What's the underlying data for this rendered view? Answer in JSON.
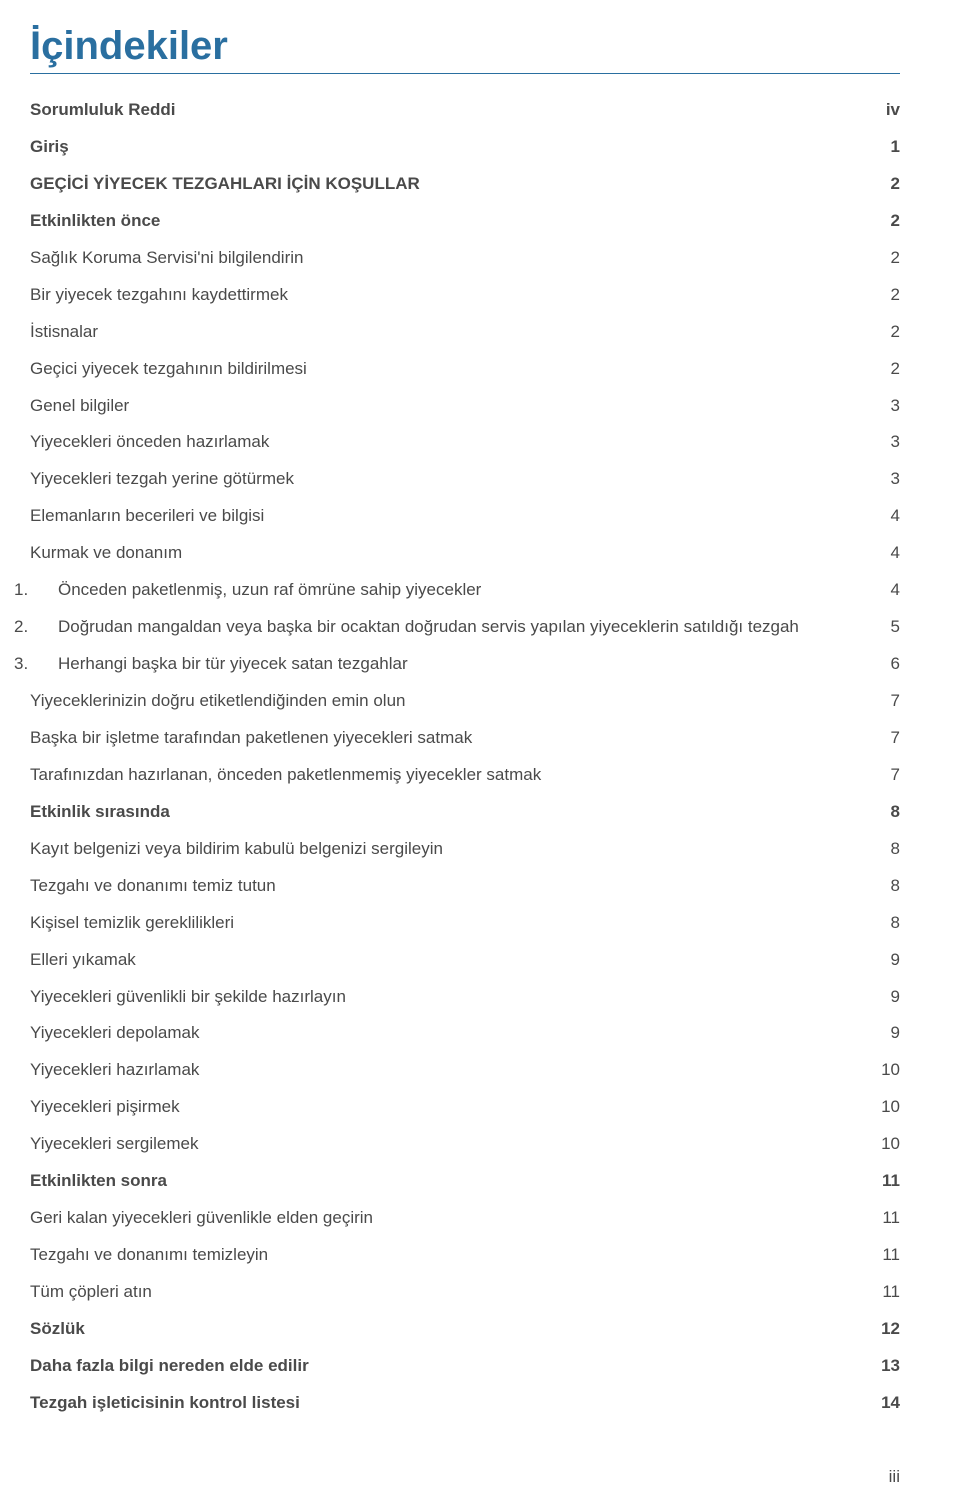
{
  "heading": "İçindekiler",
  "page_number": "iii",
  "colors": {
    "heading": "#2a6fa0",
    "text": "#4a4a4a",
    "rule": "#2a6fa0",
    "background": "#ffffff"
  },
  "typography": {
    "heading_fontsize": 40,
    "body_fontsize": 17,
    "heading_weight": 700,
    "bold_weight": 700,
    "normal_weight": 400
  },
  "toc": [
    {
      "label": "Sorumluluk Reddi",
      "page": "iv",
      "bold": true
    },
    {
      "label": "Giriş",
      "page": "1",
      "bold": true
    },
    {
      "label": "GEÇİCİ YİYECEK TEZGAHLARI İÇİN KOŞULLAR",
      "page": "2",
      "bold": true
    },
    {
      "label": "Etkinlikten önce",
      "page": "2",
      "bold": true
    },
    {
      "label": "Sağlık Koruma Servisi'ni bilgilendirin",
      "page": "2",
      "bold": false
    },
    {
      "label": "Bir yiyecek tezgahını kaydettirmek",
      "page": "2",
      "bold": false
    },
    {
      "label": "İstisnalar",
      "page": "2",
      "bold": false
    },
    {
      "label": "Geçici yiyecek tezgahının bildirilmesi",
      "page": "2",
      "bold": false
    },
    {
      "label": "Genel bilgiler",
      "page": "3",
      "bold": false
    },
    {
      "label": "Yiyecekleri önceden hazırlamak",
      "page": "3",
      "bold": false
    },
    {
      "label": "Yiyecekleri tezgah yerine götürmek",
      "page": "3",
      "bold": false
    },
    {
      "label": "Elemanların becerileri ve bilgisi",
      "page": "4",
      "bold": false
    },
    {
      "label": "Kurmak ve donanım",
      "page": "4",
      "bold": false
    },
    {
      "label": "Önceden paketlenmiş, uzun raf ömrüne sahip yiyecekler",
      "page": "4",
      "bold": false,
      "indent": 1,
      "num": "1."
    },
    {
      "label": "Doğrudan mangaldan veya başka bir ocaktan doğrudan servis yapılan yiyeceklerin satıldığı tezgah",
      "page": "5",
      "bold": false,
      "indent": 1,
      "num": "2."
    },
    {
      "label": "Herhangi başka bir tür yiyecek satan tezgahlar",
      "page": "6",
      "bold": false,
      "indent": 1,
      "num": "3."
    },
    {
      "label": "Yiyeceklerinizin doğru etiketlendiğinden emin olun",
      "page": "7",
      "bold": false
    },
    {
      "label": "Başka bir işletme tarafından paketlenen yiyecekleri satmak",
      "page": "7",
      "bold": false
    },
    {
      "label": "Tarafınızdan hazırlanan, önceden paketlenmemiş yiyecekler satmak",
      "page": "7",
      "bold": false
    },
    {
      "label": "Etkinlik sırasında",
      "page": "8",
      "bold": true
    },
    {
      "label": "Kayıt belgenizi veya bildirim kabulü belgenizi sergileyin",
      "page": "8",
      "bold": false
    },
    {
      "label": "Tezgahı ve donanımı temiz tutun",
      "page": "8",
      "bold": false
    },
    {
      "label": "Kişisel temizlik gereklilikleri",
      "page": "8",
      "bold": false
    },
    {
      "label": "Elleri yıkamak",
      "page": "9",
      "bold": false
    },
    {
      "label": "Yiyecekleri güvenlikli bir şekilde hazırlayın",
      "page": "9",
      "bold": false
    },
    {
      "label": "Yiyecekleri depolamak",
      "page": "9",
      "bold": false
    },
    {
      "label": "Yiyecekleri hazırlamak",
      "page": "10",
      "bold": false
    },
    {
      "label": "Yiyecekleri pişirmek",
      "page": "10",
      "bold": false
    },
    {
      "label": "Yiyecekleri sergilemek",
      "page": "10",
      "bold": false
    },
    {
      "label": "Etkinlikten sonra",
      "page": "11",
      "bold": true
    },
    {
      "label": "Geri kalan yiyecekleri güvenlikle elden geçirin",
      "page": "11",
      "bold": false
    },
    {
      "label": "Tezgahı ve donanımı temizleyin",
      "page": "11",
      "bold": false
    },
    {
      "label": "Tüm çöpleri atın",
      "page": "11",
      "bold": false
    },
    {
      "label": "Sözlük",
      "page": "12",
      "bold": true
    },
    {
      "label": "Daha fazla bilgi nereden elde edilir",
      "page": "13",
      "bold": true
    },
    {
      "label": "Tezgah işleticisinin kontrol listesi",
      "page": "14",
      "bold": true
    }
  ]
}
